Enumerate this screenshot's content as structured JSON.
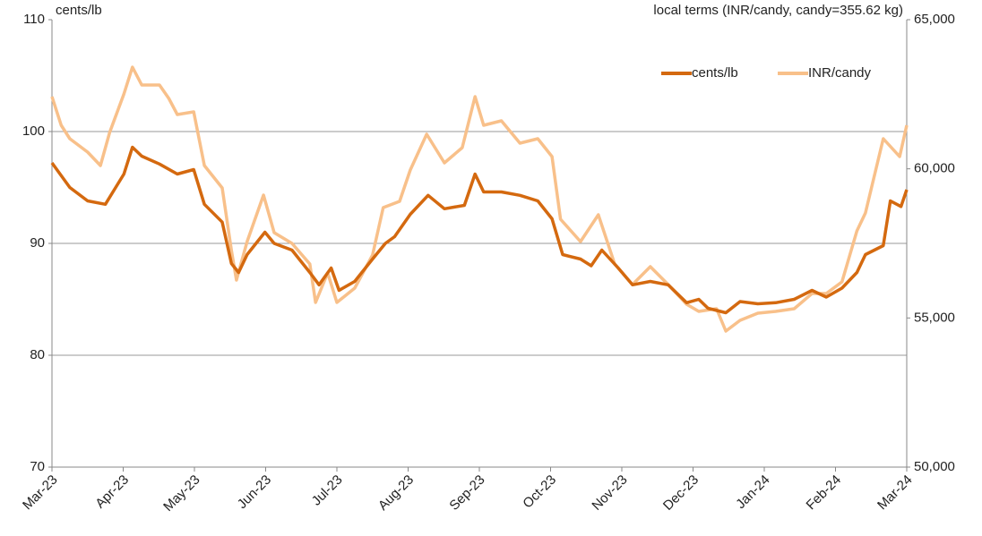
{
  "chart_data": {
    "type": "line",
    "y_label": "cents/lb",
    "y2_label": "local terms (INR/candy, candy=355.62 kg)",
    "xlim": [
      0,
      12
    ],
    "xticks": [
      {
        "value": 0,
        "label": "Mar-23"
      },
      {
        "value": 1,
        "label": "Apr-23"
      },
      {
        "value": 2,
        "label": "May-23"
      },
      {
        "value": 3,
        "label": "Jun-23"
      },
      {
        "value": 4,
        "label": "Jul-23"
      },
      {
        "value": 5,
        "label": "Aug-23"
      },
      {
        "value": 6,
        "label": "Sep-23"
      },
      {
        "value": 7,
        "label": "Oct-23"
      },
      {
        "value": 8,
        "label": "Nov-23"
      },
      {
        "value": 9,
        "label": "Dec-23"
      },
      {
        "value": 10,
        "label": "Jan-24"
      },
      {
        "value": 11,
        "label": "Feb-24"
      },
      {
        "value": 12,
        "label": "Mar-24"
      }
    ],
    "ylim": [
      70,
      110
    ],
    "yticks": [
      70,
      80,
      90,
      100,
      110
    ],
    "y2lim": [
      50000,
      65000
    ],
    "y2ticks": [
      {
        "value": 50000,
        "label": "50,000"
      },
      {
        "value": 55000,
        "label": "55,000"
      },
      {
        "value": 60000,
        "label": "60,000"
      },
      {
        "value": 65000,
        "label": "65,000"
      }
    ],
    "grid": true,
    "legend": "upper right",
    "series": [
      {
        "name": "cents/lb",
        "color": "#d4690f",
        "x": [
          0,
          0.25,
          0.5,
          0.75,
          1.01,
          1.13,
          1.26,
          1.51,
          1.76,
          1.99,
          2.14,
          2.39,
          2.52,
          2.62,
          2.74,
          2.99,
          3.12,
          3.37,
          3.62,
          3.75,
          3.92,
          4.03,
          4.25,
          4.5,
          4.68,
          4.81,
          5.03,
          5.28,
          5.51,
          5.79,
          5.94,
          6.06,
          6.31,
          6.57,
          6.82,
          7.02,
          7.17,
          7.42,
          7.57,
          7.72,
          7.95,
          8.15,
          8.4,
          8.65,
          8.91,
          9.08,
          9.21,
          9.46,
          9.66,
          9.91,
          10.16,
          10.42,
          10.67,
          10.87,
          11.09,
          11.3,
          11.42,
          11.67,
          11.77,
          11.92,
          12
        ],
        "values": [
          97.2,
          95.0,
          93.8,
          93.5,
          96.2,
          98.6,
          97.8,
          97.1,
          96.2,
          96.6,
          93.5,
          91.9,
          88.2,
          87.4,
          89.0,
          91.0,
          90.0,
          89.4,
          87.4,
          86.3,
          87.8,
          85.8,
          86.6,
          88.6,
          90.0,
          90.6,
          92.6,
          94.3,
          93.1,
          93.4,
          96.2,
          94.6,
          94.6,
          94.3,
          93.8,
          92.2,
          89.0,
          88.6,
          88.0,
          89.4,
          87.8,
          86.3,
          86.6,
          86.3,
          84.7,
          85.0,
          84.2,
          83.8,
          84.8,
          84.6,
          84.7,
          85.0,
          85.8,
          85.2,
          86.0,
          87.4,
          89.0,
          89.8,
          93.8,
          93.3,
          94.8
        ]
      },
      {
        "name": "INR/candy",
        "color": "#f8c08a",
        "axis": "y2",
        "x": [
          0,
          0.13,
          0.25,
          0.5,
          0.68,
          0.81,
          1.01,
          1.13,
          1.26,
          1.51,
          1.64,
          1.76,
          1.99,
          2.14,
          2.39,
          2.52,
          2.59,
          2.74,
          2.97,
          3.12,
          3.37,
          3.62,
          3.7,
          3.87,
          4.0,
          4.25,
          4.5,
          4.65,
          4.88,
          5.03,
          5.26,
          5.51,
          5.76,
          5.94,
          6.06,
          6.31,
          6.57,
          6.82,
          7.02,
          7.14,
          7.42,
          7.67,
          7.9,
          8.15,
          8.4,
          8.65,
          8.91,
          9.08,
          9.33,
          9.46,
          9.66,
          9.91,
          10.16,
          10.42,
          10.67,
          10.87,
          11.09,
          11.3,
          11.42,
          11.67,
          11.9,
          12
        ],
        "values": [
          62420,
          61460,
          61010,
          60560,
          60110,
          61220,
          62510,
          63410,
          62810,
          62810,
          62360,
          61820,
          61910,
          60110,
          59360,
          57260,
          56270,
          57560,
          59120,
          57860,
          57500,
          56810,
          55520,
          56510,
          55520,
          56000,
          57110,
          58700,
          58910,
          59960,
          61160,
          60200,
          60710,
          62420,
          61460,
          61610,
          60860,
          61010,
          60410,
          58310,
          57560,
          58460,
          56810,
          56120,
          56720,
          56120,
          55460,
          55220,
          55310,
          54560,
          54920,
          55160,
          55220,
          55310,
          55820,
          55820,
          56210,
          57920,
          58520,
          61010,
          60410,
          61460
        ]
      }
    ]
  }
}
